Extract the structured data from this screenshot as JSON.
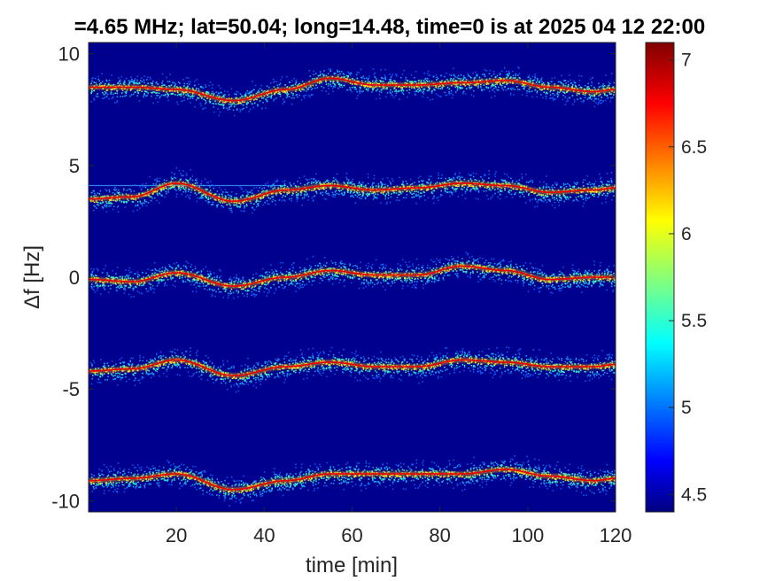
{
  "chart_data": {
    "type": "heatmap",
    "title": "=4.65 MHz;  lat=50.04; long=14.48, time=0 is at 2025 04 12 22:00",
    "xlabel": "time [min]",
    "ylabel": "Δf [Hz]",
    "xlim": [
      0,
      120
    ],
    "ylim": [
      -10.5,
      10.5
    ],
    "xticks": [
      20,
      40,
      60,
      80,
      100,
      120
    ],
    "xtick_labels": [
      "20",
      "40",
      "60",
      "80",
      "100",
      "120"
    ],
    "yticks": [
      10,
      5,
      0,
      -5,
      -10
    ],
    "ytick_labels": [
      "10",
      "5",
      "0",
      "-5",
      "-10"
    ],
    "colorbar": {
      "colormap": "jet",
      "limits": [
        4.4,
        7.1
      ],
      "ticks": [
        4.5,
        5,
        5.5,
        6,
        6.5,
        7
      ],
      "tick_labels": [
        "4.5",
        "5",
        "5.5",
        "6",
        "6.5",
        "7"
      ]
    },
    "background_color": "#00008f",
    "series": [
      {
        "time": [
          0,
          10,
          20,
          33,
          45,
          55,
          65,
          75,
          85,
          95,
          105,
          115,
          120
        ],
        "delta_f": [
          8.5,
          8.5,
          8.4,
          7.9,
          8.4,
          8.9,
          8.6,
          8.6,
          8.7,
          8.8,
          8.5,
          8.3,
          8.4
        ]
      },
      {
        "time": [
          0,
          10,
          20,
          33,
          45,
          55,
          65,
          75,
          85,
          95,
          105,
          115,
          120
        ],
        "delta_f": [
          3.5,
          3.6,
          4.2,
          3.4,
          3.9,
          4.1,
          3.9,
          4.0,
          4.2,
          4.1,
          3.8,
          3.9,
          4.0
        ]
      },
      {
        "time": [
          0,
          10,
          20,
          33,
          45,
          55,
          65,
          75,
          85,
          95,
          105,
          115,
          120
        ],
        "delta_f": [
          -0.1,
          -0.2,
          0.2,
          -0.4,
          0.0,
          0.3,
          0.1,
          0.1,
          0.5,
          0.3,
          -0.1,
          0.0,
          0.0
        ]
      },
      {
        "time": [
          0,
          10,
          20,
          33,
          45,
          55,
          65,
          75,
          85,
          95,
          105,
          115,
          120
        ],
        "delta_f": [
          -4.2,
          -4.1,
          -3.7,
          -4.4,
          -4.0,
          -3.8,
          -4.0,
          -4.0,
          -3.7,
          -3.8,
          -4.0,
          -4.0,
          -3.9
        ]
      },
      {
        "time": [
          0,
          10,
          20,
          33,
          45,
          55,
          65,
          75,
          85,
          95,
          105,
          115,
          120
        ],
        "delta_f": [
          -9.1,
          -9.0,
          -8.8,
          -9.5,
          -9.1,
          -8.8,
          -8.8,
          -8.8,
          -8.8,
          -8.6,
          -8.9,
          -9.1,
          -9.0
        ]
      }
    ],
    "constant_line": {
      "delta_f": 4.1,
      "time_range": [
        0,
        45
      ]
    },
    "grid": false
  }
}
